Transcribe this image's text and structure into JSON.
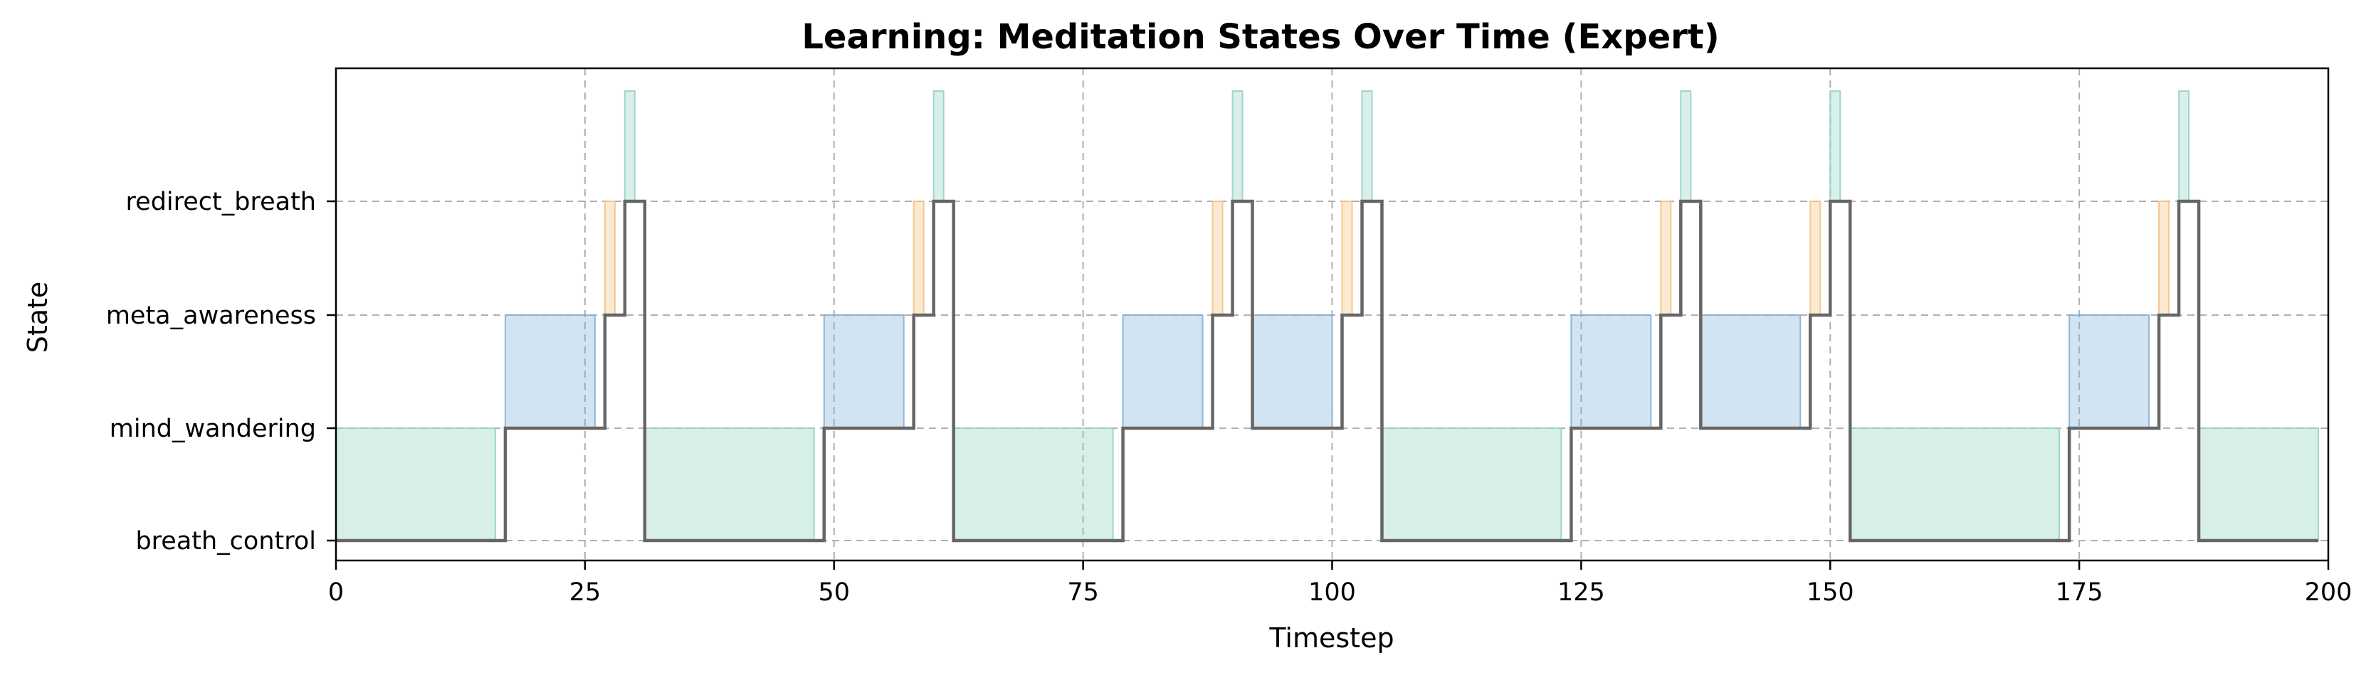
{
  "chart_data": {
    "type": "line",
    "title": "Learning: Meditation States Over Time (Expert)",
    "xlabel": "Timestep",
    "ylabel": "State",
    "xlim": [
      0,
      200
    ],
    "x_ticks": [
      0,
      25,
      50,
      75,
      100,
      125,
      150,
      175,
      200
    ],
    "y_categories": [
      "breath_control",
      "mind_wandering",
      "meta_awareness",
      "redirect_breath"
    ],
    "grid": true,
    "step_series": {
      "color": "#666666",
      "segments": [
        {
          "start": 0,
          "end": 17,
          "state": "breath_control"
        },
        {
          "start": 17,
          "end": 27,
          "state": "mind_wandering"
        },
        {
          "start": 27,
          "end": 29,
          "state": "meta_awareness"
        },
        {
          "start": 29,
          "end": 31,
          "state": "redirect_breath"
        },
        {
          "start": 31,
          "end": 49,
          "state": "breath_control"
        },
        {
          "start": 49,
          "end": 58,
          "state": "mind_wandering"
        },
        {
          "start": 58,
          "end": 60,
          "state": "meta_awareness"
        },
        {
          "start": 60,
          "end": 62,
          "state": "redirect_breath"
        },
        {
          "start": 62,
          "end": 79,
          "state": "breath_control"
        },
        {
          "start": 79,
          "end": 88,
          "state": "mind_wandering"
        },
        {
          "start": 88,
          "end": 90,
          "state": "meta_awareness"
        },
        {
          "start": 90,
          "end": 92,
          "state": "redirect_breath"
        },
        {
          "start": 92,
          "end": 101,
          "state": "mind_wandering"
        },
        {
          "start": 101,
          "end": 103,
          "state": "meta_awareness"
        },
        {
          "start": 103,
          "end": 105,
          "state": "redirect_breath"
        },
        {
          "start": 105,
          "end": 124,
          "state": "breath_control"
        },
        {
          "start": 124,
          "end": 133,
          "state": "mind_wandering"
        },
        {
          "start": 133,
          "end": 135,
          "state": "meta_awareness"
        },
        {
          "start": 135,
          "end": 137,
          "state": "redirect_breath"
        },
        {
          "start": 137,
          "end": 148,
          "state": "mind_wandering"
        },
        {
          "start": 148,
          "end": 150,
          "state": "meta_awareness"
        },
        {
          "start": 150,
          "end": 152,
          "state": "redirect_breath"
        },
        {
          "start": 152,
          "end": 174,
          "state": "breath_control"
        },
        {
          "start": 174,
          "end": 183,
          "state": "mind_wandering"
        },
        {
          "start": 183,
          "end": 185,
          "state": "meta_awareness"
        },
        {
          "start": 185,
          "end": 187,
          "state": "redirect_breath"
        },
        {
          "start": 187,
          "end": 199,
          "state": "breath_control"
        }
      ]
    },
    "shaded_blocks": [
      {
        "start": 0,
        "end": 16,
        "state": "breath_control",
        "color": "#8fd1bd"
      },
      {
        "start": 17,
        "end": 26,
        "state": "mind_wandering",
        "color": "#7faed6"
      },
      {
        "start": 27,
        "end": 28,
        "state": "meta_awareness",
        "color": "#f5c07e"
      },
      {
        "start": 29,
        "end": 30,
        "state": "redirect_breath",
        "color": "#8fd1c7"
      },
      {
        "start": 31,
        "end": 48,
        "state": "breath_control",
        "color": "#8fd1bd"
      },
      {
        "start": 49,
        "end": 57,
        "state": "mind_wandering",
        "color": "#7faed6"
      },
      {
        "start": 58,
        "end": 59,
        "state": "meta_awareness",
        "color": "#f5c07e"
      },
      {
        "start": 60,
        "end": 61,
        "state": "redirect_breath",
        "color": "#8fd1c7"
      },
      {
        "start": 62,
        "end": 78,
        "state": "breath_control",
        "color": "#8fd1bd"
      },
      {
        "start": 79,
        "end": 87,
        "state": "mind_wandering",
        "color": "#7faed6"
      },
      {
        "start": 88,
        "end": 89,
        "state": "meta_awareness",
        "color": "#f5c07e"
      },
      {
        "start": 90,
        "end": 91,
        "state": "redirect_breath",
        "color": "#8fd1c7"
      },
      {
        "start": 92,
        "end": 100,
        "state": "mind_wandering",
        "color": "#7faed6"
      },
      {
        "start": 101,
        "end": 102,
        "state": "meta_awareness",
        "color": "#f5c07e"
      },
      {
        "start": 103,
        "end": 104,
        "state": "redirect_breath",
        "color": "#8fd1c7"
      },
      {
        "start": 105,
        "end": 123,
        "state": "breath_control",
        "color": "#8fd1bd"
      },
      {
        "start": 124,
        "end": 132,
        "state": "mind_wandering",
        "color": "#7faed6"
      },
      {
        "start": 133,
        "end": 134,
        "state": "meta_awareness",
        "color": "#f5c07e"
      },
      {
        "start": 135,
        "end": 136,
        "state": "redirect_breath",
        "color": "#8fd1c7"
      },
      {
        "start": 137,
        "end": 147,
        "state": "mind_wandering",
        "color": "#7faed6"
      },
      {
        "start": 148,
        "end": 149,
        "state": "meta_awareness",
        "color": "#f5c07e"
      },
      {
        "start": 150,
        "end": 151,
        "state": "redirect_breath",
        "color": "#8fd1c7"
      },
      {
        "start": 152,
        "end": 173,
        "state": "breath_control",
        "color": "#8fd1bd"
      },
      {
        "start": 174,
        "end": 182,
        "state": "mind_wandering",
        "color": "#7faed6"
      },
      {
        "start": 183,
        "end": 184,
        "state": "meta_awareness",
        "color": "#f5c07e"
      },
      {
        "start": 185,
        "end": 186,
        "state": "redirect_breath",
        "color": "#8fd1c7"
      },
      {
        "start": 187,
        "end": 199,
        "state": "breath_control",
        "color": "#8fd1bd"
      }
    ]
  }
}
